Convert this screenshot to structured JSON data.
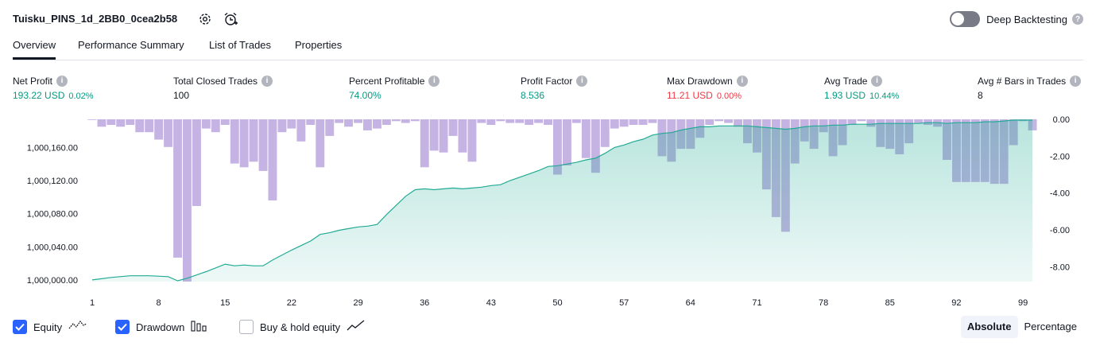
{
  "header": {
    "title": "Tuisku_PINS_1d_2BB0_0cea2b58",
    "settings_icon": "gear-icon",
    "alert_icon": "alarm-clock-plus-icon",
    "deep_backtesting_label": "Deep Backtesting",
    "deep_backtesting_enabled": false
  },
  "tabs": [
    {
      "label": "Overview",
      "active": true
    },
    {
      "label": "Performance Summary",
      "active": false
    },
    {
      "label": "List of Trades",
      "active": false
    },
    {
      "label": "Properties",
      "active": false
    }
  ],
  "metrics": [
    {
      "label": "Net Profit",
      "value": "193.22 USD",
      "pct": "0.02%",
      "color": "#089981"
    },
    {
      "label": "Total Closed Trades",
      "value": "100",
      "pct": "",
      "color": "#131722"
    },
    {
      "label": "Percent Profitable",
      "value": "74.00%",
      "pct": "",
      "color": "#089981"
    },
    {
      "label": "Profit Factor",
      "value": "8.536",
      "pct": "",
      "color": "#089981"
    },
    {
      "label": "Max Drawdown",
      "value": "11.21 USD",
      "pct": "0.00%",
      "color": "#f23645"
    },
    {
      "label": "Avg Trade",
      "value": "1.93 USD",
      "pct": "10.44%",
      "color": "#089981"
    },
    {
      "label": "Avg # Bars in Trades",
      "value": "8",
      "pct": "",
      "color": "#131722"
    }
  ],
  "chart_data": {
    "type": "area",
    "x_ticks": [
      "1",
      "8",
      "15",
      "22",
      "29",
      "36",
      "43",
      "50",
      "57",
      "64",
      "71",
      "78",
      "85",
      "92",
      "99"
    ],
    "left_axis": {
      "ticks": [
        "1,000,000.00",
        "1,000,040.00",
        "1,000,080.00",
        "1,000,120.00",
        "1,000,160.00"
      ],
      "range": [
        999998,
        1000194
      ]
    },
    "right_axis": {
      "ticks": [
        "0.00",
        "-2.00",
        "-4.00",
        "-6.00",
        "-8.00"
      ],
      "range": [
        0,
        -8.8
      ]
    },
    "equity": [
      [
        1,
        1000000
      ],
      [
        3,
        1000003
      ],
      [
        5,
        1000005
      ],
      [
        7,
        1000005
      ],
      [
        9,
        1000004
      ],
      [
        10,
        999999
      ],
      [
        11,
        1000002
      ],
      [
        13,
        1000010
      ],
      [
        15,
        1000019
      ],
      [
        16,
        1000017
      ],
      [
        17,
        1000018
      ],
      [
        18,
        1000017
      ],
      [
        19,
        1000017
      ],
      [
        20,
        1000024
      ],
      [
        22,
        1000036
      ],
      [
        24,
        1000047
      ],
      [
        25,
        1000055
      ],
      [
        26,
        1000057
      ],
      [
        27,
        1000060
      ],
      [
        28,
        1000062
      ],
      [
        29,
        1000064
      ],
      [
        30,
        1000065
      ],
      [
        31,
        1000067
      ],
      [
        32,
        1000079
      ],
      [
        34,
        1000101
      ],
      [
        35,
        1000109
      ],
      [
        36,
        1000110
      ],
      [
        37,
        1000109
      ],
      [
        38,
        1000110
      ],
      [
        39,
        1000111
      ],
      [
        40,
        1000110
      ],
      [
        41,
        1000111
      ],
      [
        42,
        1000112
      ],
      [
        43,
        1000114
      ],
      [
        44,
        1000115
      ],
      [
        45,
        1000120
      ],
      [
        47,
        1000128
      ],
      [
        48,
        1000132
      ],
      [
        49,
        1000137
      ],
      [
        50,
        1000138
      ],
      [
        51,
        1000140
      ],
      [
        52,
        1000142
      ],
      [
        53,
        1000145
      ],
      [
        54,
        1000147
      ],
      [
        55,
        1000153
      ],
      [
        56,
        1000160
      ],
      [
        57,
        1000163
      ],
      [
        58,
        1000167
      ],
      [
        59,
        1000170
      ],
      [
        60,
        1000175
      ],
      [
        61,
        1000177
      ],
      [
        62,
        1000178
      ],
      [
        63,
        1000181
      ],
      [
        64,
        1000183
      ],
      [
        65,
        1000185
      ],
      [
        66,
        1000185
      ],
      [
        67,
        1000186
      ],
      [
        68,
        1000186
      ],
      [
        69,
        1000186
      ],
      [
        70,
        1000186
      ],
      [
        71,
        1000185
      ],
      [
        72,
        1000184
      ],
      [
        73,
        1000183
      ],
      [
        74,
        1000182
      ],
      [
        75,
        1000183
      ],
      [
        76,
        1000185
      ],
      [
        77,
        1000186
      ],
      [
        78,
        1000186
      ],
      [
        79,
        1000187
      ],
      [
        80,
        1000187
      ],
      [
        81,
        1000188
      ],
      [
        82,
        1000188
      ],
      [
        83,
        1000188
      ],
      [
        84,
        1000189
      ],
      [
        85,
        1000189
      ],
      [
        86,
        1000189
      ],
      [
        87,
        1000189
      ],
      [
        88,
        1000189
      ],
      [
        89,
        1000190
      ],
      [
        90,
        1000190
      ],
      [
        91,
        1000189
      ],
      [
        92,
        1000190
      ],
      [
        93,
        1000190
      ],
      [
        94,
        1000190
      ],
      [
        95,
        1000191
      ],
      [
        96,
        1000191
      ],
      [
        97,
        1000192
      ],
      [
        98,
        1000193
      ],
      [
        99,
        1000193
      ],
      [
        100,
        1000193
      ]
    ],
    "drawdown": [
      0.0,
      -0.4,
      -0.3,
      -0.4,
      -0.3,
      -0.7,
      -0.7,
      -1.1,
      -1.5,
      -7.5,
      -8.8,
      -4.7,
      -0.5,
      -0.7,
      -0.3,
      -2.4,
      -2.6,
      -2.3,
      -2.8,
      -4.4,
      -0.7,
      -0.5,
      -1.2,
      -0.3,
      -2.6,
      -0.9,
      -0.2,
      -0.4,
      -0.2,
      -0.6,
      -0.5,
      -0.3,
      -0.1,
      -0.2,
      -0.1,
      -2.6,
      -1.7,
      -1.8,
      -0.9,
      -1.8,
      -2.3,
      -0.2,
      -0.3,
      -0.1,
      -0.2,
      -0.2,
      -0.3,
      -0.2,
      -0.3,
      -3.0,
      -2.5,
      -0.2,
      -2.1,
      -2.9,
      -1.5,
      -0.5,
      -0.4,
      -0.3,
      -0.3,
      -0.2,
      -2.0,
      -2.3,
      -1.6,
      -1.6,
      -1.0,
      -0.3,
      -0.1,
      -0.2,
      -0.4,
      -1.3,
      -1.8,
      -3.8,
      -5.3,
      -6.1,
      -2.4,
      -1.2,
      -1.6,
      -0.7,
      -2.0,
      -1.4,
      -0.3,
      -0.1,
      -0.4,
      -1.5,
      -1.6,
      -1.9,
      -1.3,
      -0.2,
      -0.3,
      -0.4,
      -2.2,
      -3.4,
      -3.4,
      -3.4,
      -3.4,
      -3.5,
      -3.5,
      -1.4,
      -0.1,
      -0.6
    ],
    "colors": {
      "equity_line": "#22ab94",
      "equity_fill": "#22ab94",
      "drawdown_bar": "#7e57c2"
    }
  },
  "legend": [
    {
      "label": "Equity",
      "checked": true,
      "icon": "equity-line-icon"
    },
    {
      "label": "Drawdown",
      "checked": true,
      "icon": "drawdown-bars-icon"
    },
    {
      "label": "Buy & hold equity",
      "checked": false,
      "icon": "buy-hold-line-icon"
    }
  ],
  "scale": {
    "absolute_label": "Absolute",
    "percentage_label": "Percentage",
    "selected": "Absolute"
  }
}
